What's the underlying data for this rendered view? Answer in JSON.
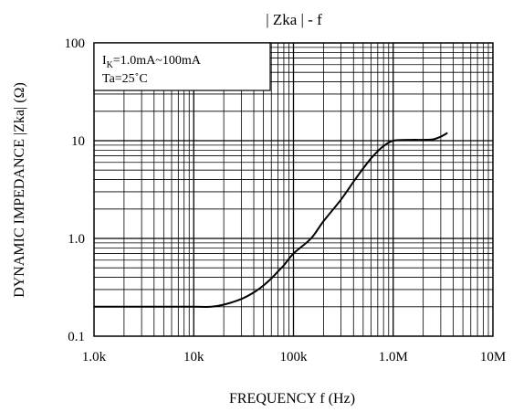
{
  "chart_data": {
    "type": "line",
    "title": "| Zka |  -  f",
    "xlabel": "FREQUENCY  f  (Hz)",
    "ylabel": "DYNAMIC IMPEDANCE  |Zka| (Ω)",
    "xscale": "log",
    "yscale": "log",
    "xlim": [
      1000,
      10000000
    ],
    "ylim": [
      0.1,
      100
    ],
    "grid": true,
    "x_ticks": [
      {
        "value": 1000,
        "label": "1.0k"
      },
      {
        "value": 10000,
        "label": "10k"
      },
      {
        "value": 100000,
        "label": "100k"
      },
      {
        "value": 1000000,
        "label": "1.0M"
      },
      {
        "value": 10000000,
        "label": "10M"
      }
    ],
    "y_ticks": [
      {
        "value": 0.1,
        "label": "0.1"
      },
      {
        "value": 1,
        "label": "1.0"
      },
      {
        "value": 10,
        "label": "10"
      },
      {
        "value": 100,
        "label": "100"
      }
    ],
    "annotation": {
      "line1_main": "I",
      "line1_sub": "K",
      "line1_rest": "=1.0mA~100mA",
      "line2": "Ta=25˚C"
    },
    "series": [
      {
        "color": "#000000",
        "x": [
          1000,
          5000,
          10000,
          15000,
          20000,
          30000,
          40000,
          50000,
          60000,
          70000,
          80000,
          100000,
          150000,
          200000,
          300000,
          400000,
          500000,
          600000,
          700000,
          800000,
          1000000,
          1500000,
          2000000,
          2500000,
          3000000,
          3500000
        ],
        "y": [
          0.2,
          0.2,
          0.2,
          0.2,
          0.21,
          0.24,
          0.28,
          0.33,
          0.39,
          0.46,
          0.53,
          0.7,
          1.0,
          1.5,
          2.5,
          3.8,
          5.2,
          6.6,
          7.8,
          8.8,
          10.0,
          10.2,
          10.2,
          10.3,
          11.0,
          12.0
        ]
      }
    ]
  }
}
